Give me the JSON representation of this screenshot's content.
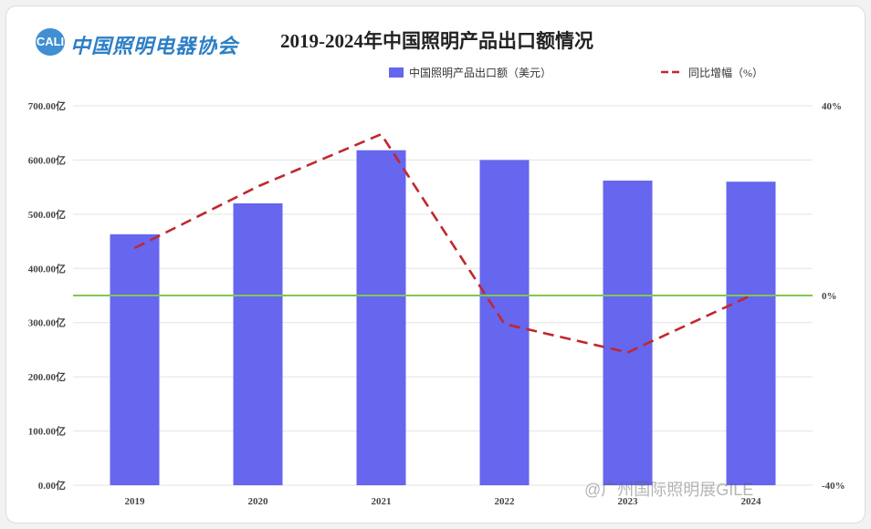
{
  "header": {
    "logo_mark": "CALI",
    "logo_text": "中国照明电器协会",
    "title": "2019-2024年中国照明产品出口额情况"
  },
  "watermark": "@广州国际照明展GILE",
  "chart_data": {
    "type": "bar+line",
    "title": "2019-2024年中国照明产品出口额情况",
    "categories": [
      "2019",
      "2020",
      "2021",
      "2022",
      "2023",
      "2024"
    ],
    "series": [
      {
        "name": "中国照明产品出口额（美元）",
        "type": "bar",
        "axis": "left",
        "color": "#6666ee",
        "values": [
          463,
          520,
          618,
          600,
          562,
          560
        ]
      },
      {
        "name": "同比增幅（%）",
        "type": "line",
        "axis": "right",
        "style": "dashed",
        "color": "#c0282d",
        "values": [
          10,
          23,
          34,
          -6,
          -12,
          0
        ]
      }
    ],
    "y_left": {
      "min": 0,
      "max": 700,
      "step": 100,
      "tick_labels": [
        "0.00亿",
        "100.00亿",
        "200.00亿",
        "300.00亿",
        "400.00亿",
        "500.00亿",
        "600.00亿",
        "700.00亿"
      ]
    },
    "y_right": {
      "min": -40,
      "max": 40,
      "tick_values": [
        -40,
        0,
        40
      ],
      "tick_labels": [
        "-40%",
        "0%",
        "40%"
      ]
    },
    "zero_line_color": "#7ec850",
    "grid": true,
    "legend_position": "top-right"
  }
}
